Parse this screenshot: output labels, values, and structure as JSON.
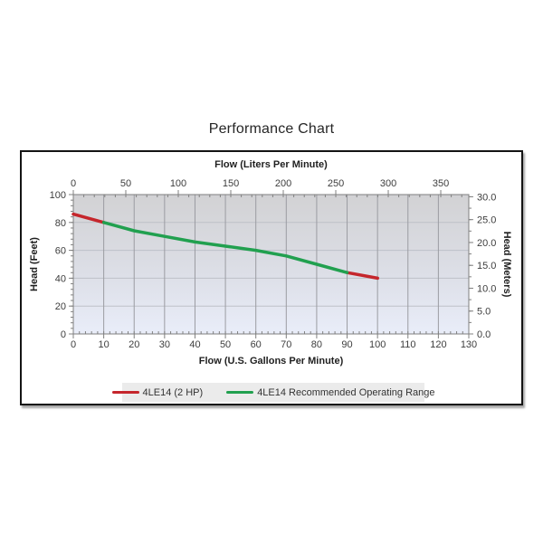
{
  "page": {
    "title": "Performance Chart"
  },
  "chart_data": {
    "type": "line",
    "title": "Performance Chart",
    "x_bottom": {
      "label": "Flow (U.S. Gallons Per Minute)",
      "min": 0,
      "max": 130,
      "ticks": [
        0,
        10,
        20,
        30,
        40,
        50,
        60,
        70,
        80,
        90,
        100,
        110,
        120,
        130
      ],
      "minor_tick": 2
    },
    "x_top": {
      "label": "Flow (Liters Per Minute)",
      "min": 0,
      "max": 376.7,
      "ticks": [
        0,
        50,
        100,
        150,
        200,
        250,
        300,
        350
      ],
      "minor_tick": 10
    },
    "y_left": {
      "label": "Head (Feet)",
      "min": 0,
      "max": 100,
      "ticks": [
        0,
        20,
        40,
        60,
        80,
        100
      ],
      "minor_tick": 4
    },
    "y_right": {
      "label": "Head (Meters)",
      "min": 0,
      "max": 30,
      "ticks": [
        0,
        5,
        10,
        15,
        20,
        25,
        30
      ],
      "minor_tick": 2.5,
      "decimals": 1,
      "feet_per_meter": 3.2808
    },
    "grid": {
      "vertical": true,
      "horizontal": true
    },
    "legend_position": "bottom",
    "series": [
      {
        "name": "4LE14 (2 HP)",
        "color": "#c5262c",
        "lines": [
          [
            [
              0,
              86
            ],
            [
              10,
              80
            ]
          ],
          [
            [
              90,
              44
            ],
            [
              100,
              40
            ]
          ]
        ]
      },
      {
        "name": "4LE14 Recommended Operating Range",
        "color": "#21a04f",
        "lines": [
          [
            [
              10,
              80
            ],
            [
              20,
              74
            ],
            [
              30,
              70
            ],
            [
              40,
              66
            ],
            [
              50,
              63
            ],
            [
              60,
              60
            ],
            [
              70,
              56
            ],
            [
              80,
              50
            ],
            [
              90,
              44
            ]
          ]
        ]
      }
    ]
  },
  "legend": {
    "items": [
      {
        "label": "4LE14 (2 HP)",
        "color": "#c5262c"
      },
      {
        "label": "4LE14 Recommended Operating Range",
        "color": "#21a04f"
      }
    ]
  },
  "colors": {
    "plot_bg_top": "#d2d2d4",
    "plot_bg_mid": "#dcdee6",
    "plot_bg_bottom": "#e9edf9",
    "grid_vertical": "#9b9ca2",
    "grid_horizontal": "#bdc0c8",
    "frame": "#7f7f7f",
    "tick": "#808080",
    "tick_text": "#3d3d3d",
    "legend_bg": "#ebebeb"
  }
}
